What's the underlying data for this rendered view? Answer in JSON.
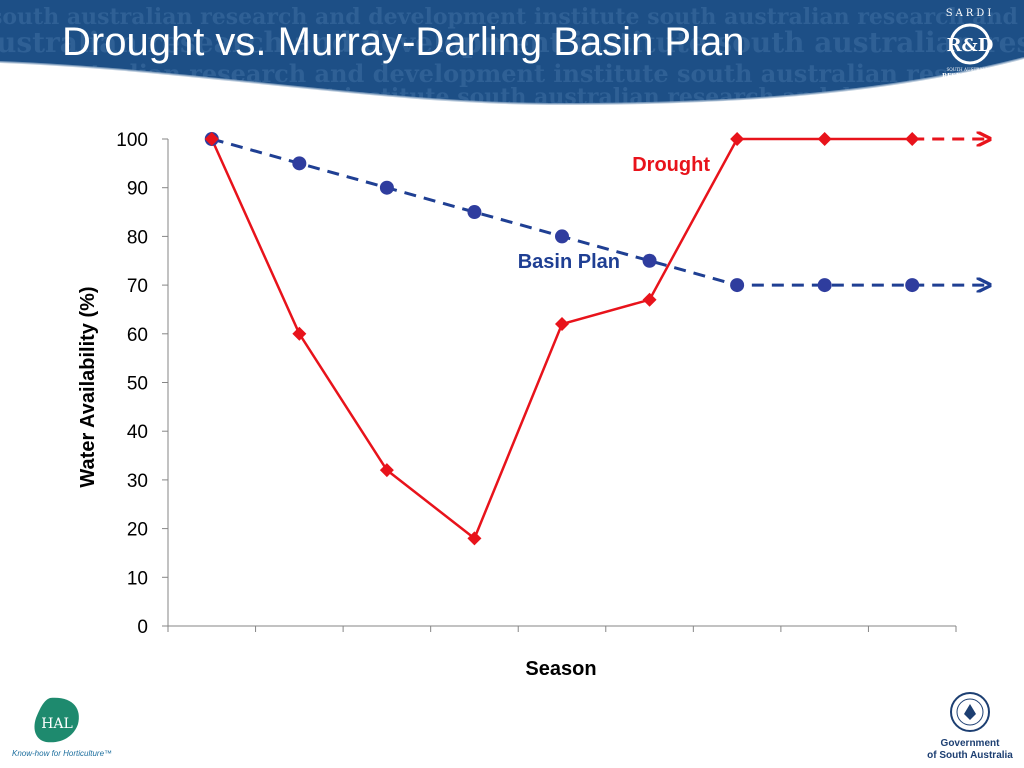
{
  "slide": {
    "title": "Drought vs. Murray-Darling Basin Plan",
    "banner_watermark": "south australian research and development institute",
    "banner_color": "#1d4f86"
  },
  "logos": {
    "sardi": {
      "acronym": "SARDI",
      "mark": "R&D",
      "line1": "SOUTH AUSTRALIAN",
      "line2": "RESEARCH AND",
      "line3": "DEVELOPMENT",
      "line4": "INSTITUTE"
    },
    "hal": {
      "mark": "HAL",
      "tagline": "Know-how for Horticulture™",
      "color": "#1e8a6e"
    },
    "government": {
      "line1": "Government",
      "line2": "of South Australia",
      "color": "#1d3f72"
    }
  },
  "chart_data": {
    "type": "line",
    "x": [
      1,
      2,
      3,
      4,
      5,
      6,
      7,
      8,
      9
    ],
    "xlabel": "Season",
    "ylabel": "Water Availability (%)",
    "ylim": [
      0,
      100
    ],
    "ytick_step": 10,
    "yticks": [
      "0",
      "10",
      "20",
      "30",
      "40",
      "50",
      "60",
      "70",
      "80",
      "90",
      "100"
    ],
    "grid": false,
    "series": [
      {
        "name": "Drought",
        "values": [
          100,
          60,
          32,
          18,
          62,
          67,
          100,
          100,
          100
        ],
        "color": "#e8131b",
        "marker": "diamond",
        "line_style": "solid",
        "continues": "dashed arrow to the right"
      },
      {
        "name": "Basin Plan",
        "values": [
          100,
          95,
          90,
          85,
          80,
          75,
          70,
          70,
          70
        ],
        "color": "#1f3f93",
        "marker_color": "#2f3d9e",
        "marker": "circle",
        "line_style": "dashed",
        "continues": "dashed arrow to the right"
      }
    ]
  }
}
